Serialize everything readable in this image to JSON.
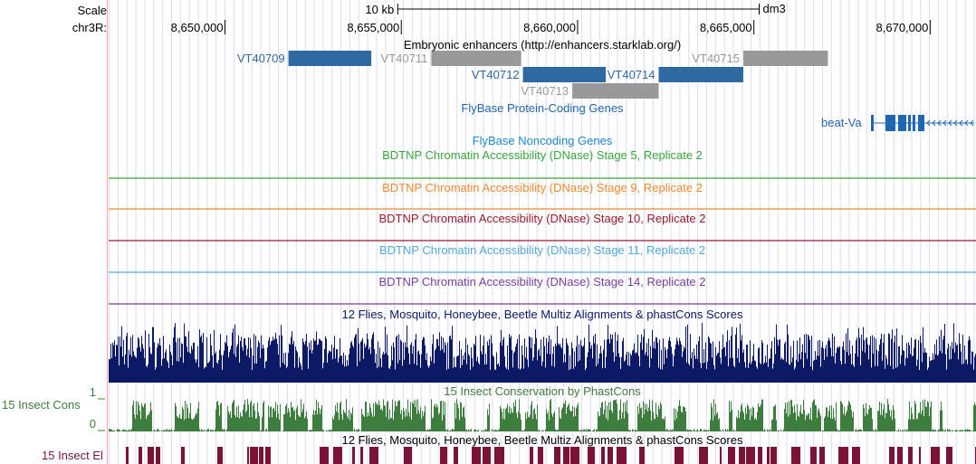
{
  "ruler": {
    "scale_label": "Scale",
    "scale_bar_label": "10 kb",
    "assembly": "dm3",
    "chrom_label": "chr3R:",
    "ticks": [
      {
        "pos": 8650000,
        "label": "8,650,000"
      },
      {
        "pos": 8655000,
        "label": "8,655,000"
      },
      {
        "pos": 8660000,
        "label": "8,660,000"
      },
      {
        "pos": 8665000,
        "label": "8,665,000"
      },
      {
        "pos": 8670000,
        "label": "8,670,000"
      }
    ],
    "view_start": 8646700,
    "view_end": 8671300,
    "scale_bar_start": 8654900,
    "scale_bar_end": 8665150
  },
  "tracks": {
    "enhancers": {
      "title": "Embryonic enhancers (http://enhancers.starklab.org/)",
      "features": [
        {
          "name": "VT40709",
          "start": 8651800,
          "end": 8654150,
          "color": "#2e6aa1",
          "label_color": "#2e6aa1"
        },
        {
          "name": "VT40711",
          "start": 8655850,
          "end": 8658400,
          "color": "#999999",
          "label_color": "#999999"
        },
        {
          "name": "VT40712",
          "start": 8658450,
          "end": 8660800,
          "color": "#2e6aa1",
          "label_color": "#2e6aa1"
        },
        {
          "name": "VT40713",
          "start": 8659850,
          "end": 8662300,
          "color": "#999999",
          "label_color": "#999999"
        },
        {
          "name": "VT40714",
          "start": 8662300,
          "end": 8664700,
          "color": "#2e6aa1",
          "label_color": "#2e6aa1"
        },
        {
          "name": "VT40715",
          "start": 8664700,
          "end": 8667100,
          "color": "#999999",
          "label_color": "#999999"
        }
      ]
    },
    "flybase_coding": {
      "title": "FlyBase Protein-Coding Genes",
      "color": "#1f67b0",
      "gene": {
        "name": "beat-Va"
      }
    },
    "flybase_noncoding": {
      "title": "FlyBase Noncoding Genes",
      "color": "#1f8ad0"
    },
    "dnase": [
      {
        "title": "BDTNP Chromatin Accessibility (DNase) Stage 5, Replicate 2",
        "color": "#3aa63a"
      },
      {
        "title": "BDTNP Chromatin Accessibility (DNase) Stage 9, Replicate 2",
        "color": "#f08a2c"
      },
      {
        "title": "BDTNP Chromatin Accessibility (DNase) Stage 10, Replicate 2",
        "color": "#9b1b2a"
      },
      {
        "title": "BDTNP Chromatin Accessibility (DNase) Stage 11, Replicate 2",
        "color": "#55aad6"
      },
      {
        "title": "BDTNP Chromatin Accessibility (DNase) Stage 14, Replicate 2",
        "color": "#7a3f9e"
      }
    ],
    "multiz": {
      "title": "12 Flies, Mosquito, Honeybee, Beetle Multiz Alignments & phastCons Scores",
      "color": "#0c1a66"
    },
    "phastcons": {
      "title": "15 Insect Conservation by PhastCons",
      "side_label": "15 Insect Cons",
      "y_max": "1",
      "y_min": "0",
      "color": "#3d7d3d"
    },
    "elements": {
      "title": "12 Flies, Mosquito, Honeybee, Beetle Multiz Alignments & phastCons Scores",
      "side_label": "15 Insect El",
      "color": "#7a1335"
    }
  }
}
